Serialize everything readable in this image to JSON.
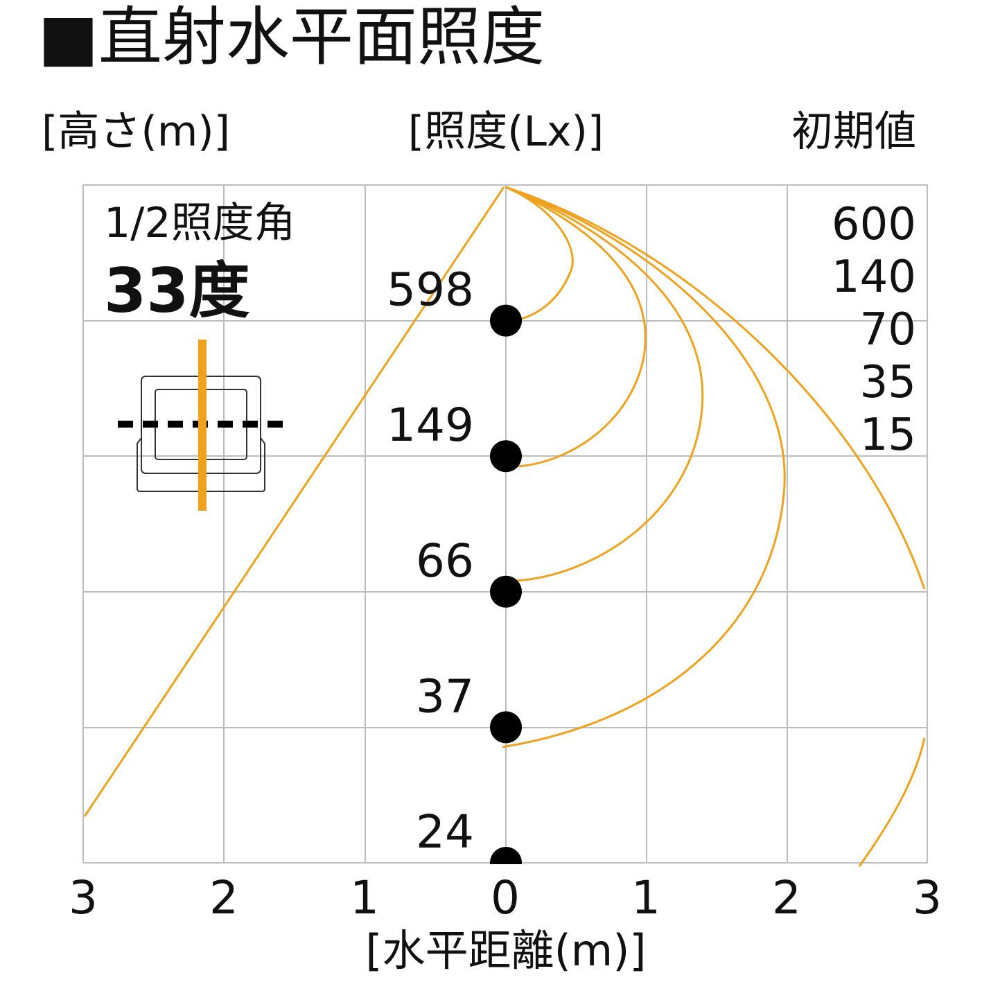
{
  "title": "■直射水平面照度",
  "header": {
    "height_label": "[高さ(m)]",
    "lux_label": "[照度(Lx)]",
    "initial": "初期値"
  },
  "beam_angle": {
    "label": "1/2照度角",
    "value": "33度"
  },
  "points": [
    598,
    149,
    66,
    37,
    24
  ],
  "contours": [
    600,
    140,
    70,
    35,
    15
  ],
  "x_axis": {
    "ticks": [
      3,
      2,
      1,
      0,
      1,
      2,
      3
    ],
    "label": "[水平距離(m)]"
  }
}
